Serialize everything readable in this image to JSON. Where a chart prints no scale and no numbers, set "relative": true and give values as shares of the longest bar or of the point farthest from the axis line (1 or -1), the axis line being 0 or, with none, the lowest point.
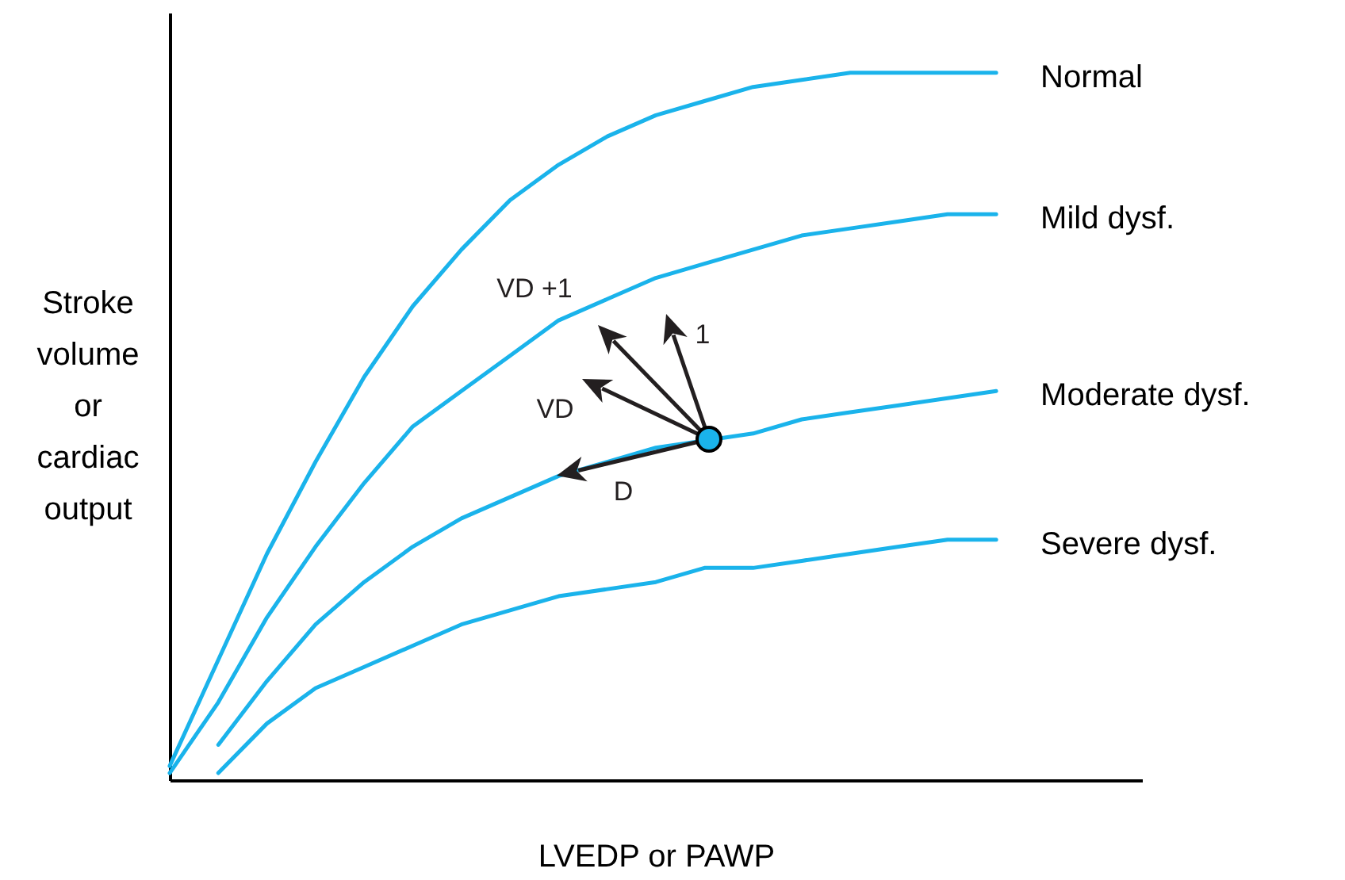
{
  "chart_data": {
    "type": "line",
    "relative": true,
    "xlabel": "LVEDP or PAWP",
    "ylabel": "Stroke volume or cardiac output",
    "categories": [
      null,
      null,
      null,
      null,
      null,
      null,
      null,
      null,
      null,
      null,
      null,
      null,
      null,
      null,
      null,
      null,
      null,
      null,
      null,
      null,
      null
    ],
    "series": [
      {
        "name": "Normal",
        "color": "#1ab3eb",
        "values": [
          0.02,
          0.17,
          0.32,
          0.45,
          0.57,
          0.67,
          0.75,
          0.82,
          0.87,
          0.91,
          0.94,
          0.96,
          0.98,
          0.99,
          1.0,
          1.0,
          1.0,
          1.0,
          null,
          null,
          null
        ]
      },
      {
        "name": "Mild dysf.",
        "color": "#1ab3eb",
        "values": [
          0.01,
          0.11,
          0.23,
          0.33,
          0.42,
          0.5,
          0.55,
          0.6,
          0.65,
          0.68,
          0.71,
          0.73,
          0.75,
          0.77,
          0.78,
          0.79,
          0.8,
          0.8,
          null,
          null,
          null
        ]
      },
      {
        "name": "Moderate dysf.",
        "color": "#1ab3eb",
        "values": [
          null,
          0.05,
          0.14,
          0.22,
          0.28,
          0.33,
          0.37,
          0.4,
          0.43,
          0.45,
          0.47,
          0.48,
          0.49,
          0.51,
          0.52,
          0.53,
          0.54,
          0.55,
          null,
          null,
          null
        ]
      },
      {
        "name": "Severe dysf.",
        "color": "#1ab3eb",
        "values": [
          null,
          0.01,
          0.08,
          0.13,
          0.16,
          0.19,
          0.22,
          0.24,
          0.26,
          0.27,
          0.28,
          0.3,
          0.3,
          0.31,
          0.32,
          0.33,
          0.34,
          0.34,
          null,
          null,
          null
        ]
      }
    ],
    "annotations": [
      "VD +1",
      "1",
      "VD",
      "D"
    ],
    "line_style": "solid",
    "grid": false,
    "legend": false,
    "tick_labels": false
  }
}
